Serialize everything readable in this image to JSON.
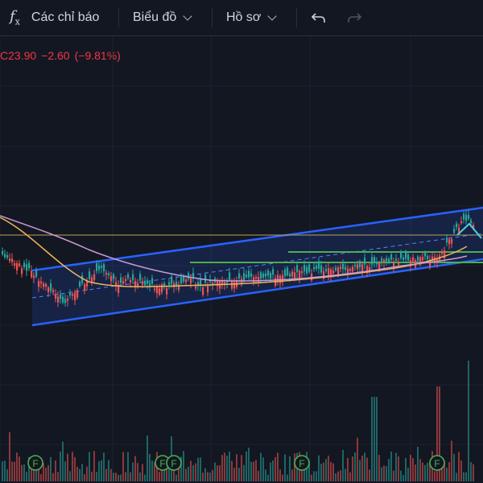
{
  "toolbar": {
    "indicators_label": "Các chỉ báo",
    "chart_label": "Biểu đồ",
    "profile_label": "Hồ sơ",
    "fx_icon": "function-icon",
    "undo_icon": "undo-icon",
    "redo_icon": "redo-icon"
  },
  "legend": {
    "prefix": "C",
    "close": "23.90",
    "change": "−2.60",
    "change_pct": "(−9.81%)"
  },
  "colors": {
    "background": "#131722",
    "candle_up": "#26a69a",
    "candle_down": "#ef5350",
    "channel": "#2962ff",
    "ma_short": "#f0b35a",
    "ma_long": "#c99ad6",
    "level_line": "#b8a25a",
    "support": "#4caf50",
    "event_marker": "#4caf50"
  },
  "markers": [
    {
      "label": "F"
    },
    {
      "label": "F"
    },
    {
      "label": "F"
    },
    {
      "label": "F"
    },
    {
      "label": "F"
    }
  ]
}
